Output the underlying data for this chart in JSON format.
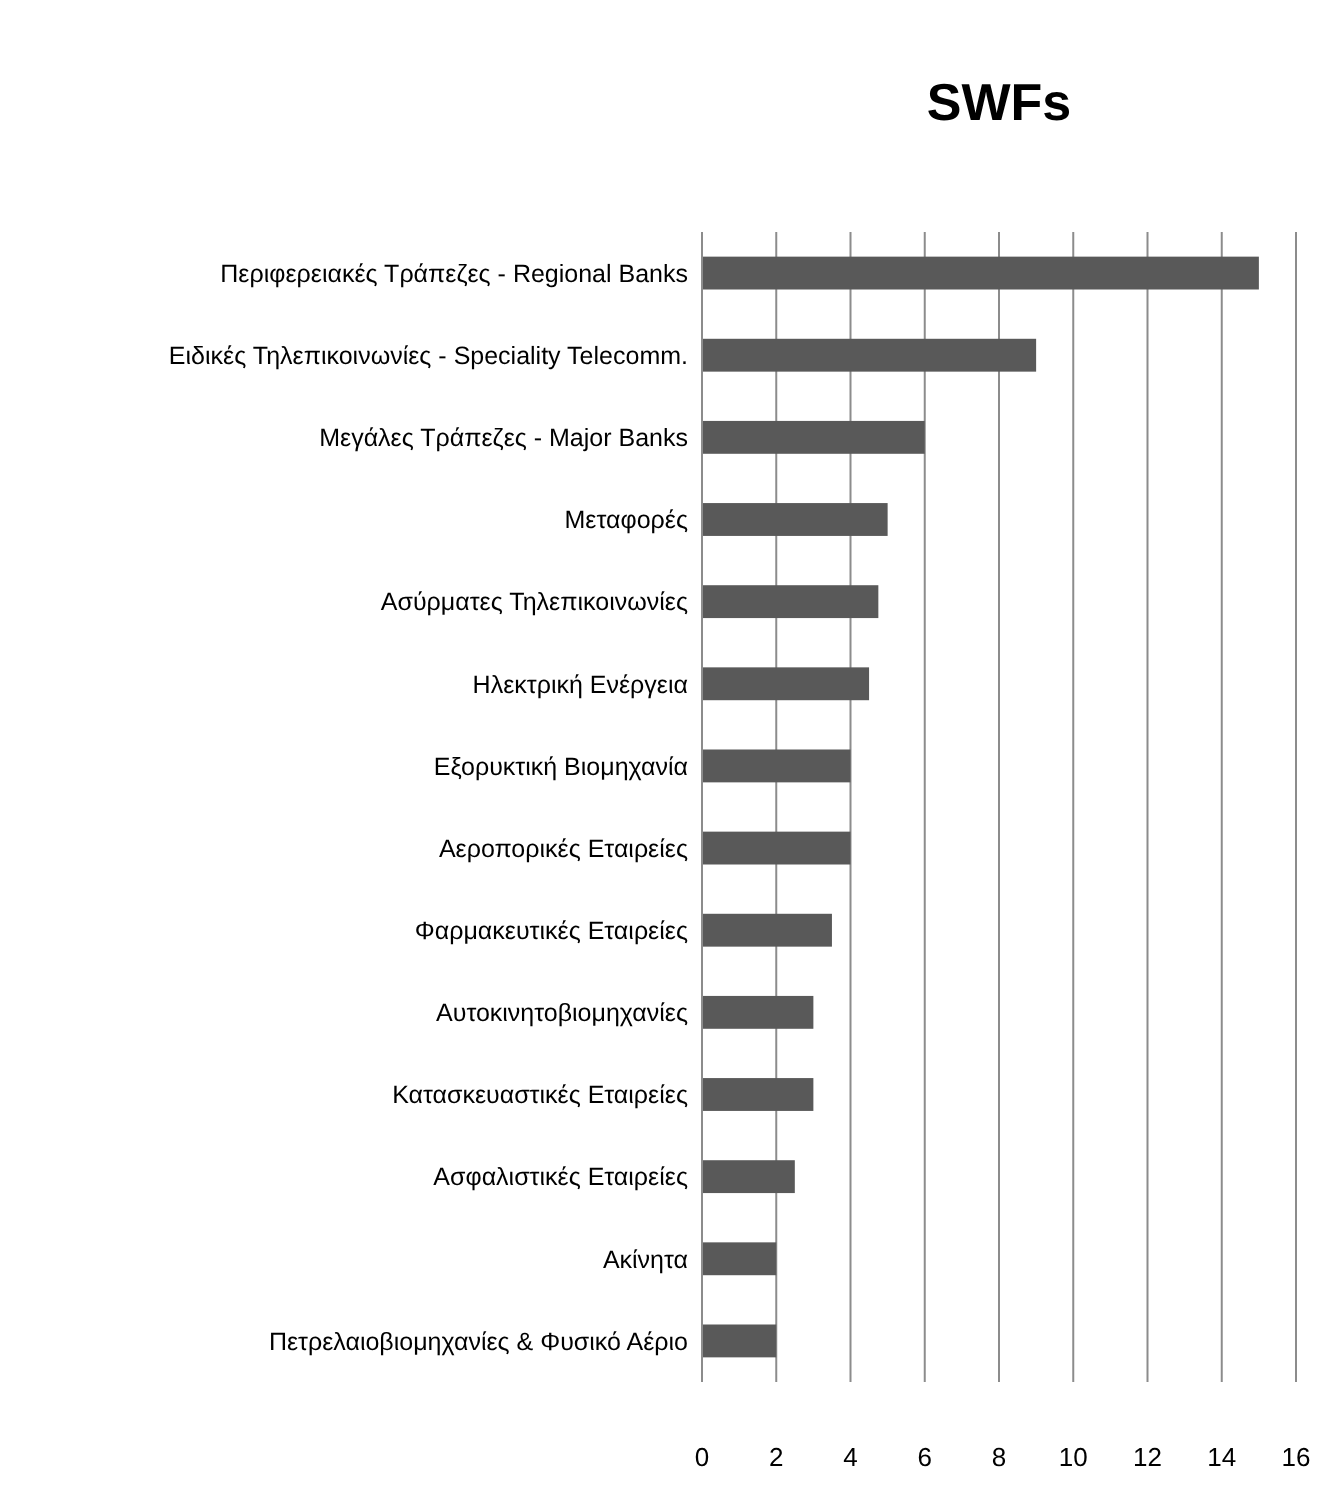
{
  "chart_data": {
    "type": "bar",
    "orientation": "horizontal",
    "title": "SWFs",
    "categories": [
      "Περιφερειακές Τράπεζες - Regional Banks",
      "Ειδικές Τηλεπικοινωνίες - Speciality Telecomm.",
      "Μεγάλες Τράπεζες - Major Banks",
      "Μεταφορές",
      "Ασύρματες Τηλεπικοινωνίες",
      "Ηλεκτρική Ενέργεια",
      "Εξορυκτική Βιομηχανία",
      "Αεροπορικές Εταιρείες",
      "Φαρμακευτικές Εταιρείες",
      "Αυτοκινητοβιομηχανίες",
      "Κατασκευαστικές Εταιρείες",
      "Ασφαλιστικές Εταιρείες",
      "Ακίνητα",
      "Πετρελαιοβιομηχανίες & Φυσικό Αέριο"
    ],
    "values": [
      15,
      9,
      6,
      5,
      4.75,
      4.5,
      4,
      4,
      3.5,
      3,
      3,
      2.5,
      2,
      2
    ],
    "color": "#595959",
    "xlim": [
      0,
      16
    ],
    "xticks": [
      0,
      2,
      4,
      6,
      8,
      10,
      12,
      14,
      16
    ],
    "grid": "x"
  }
}
